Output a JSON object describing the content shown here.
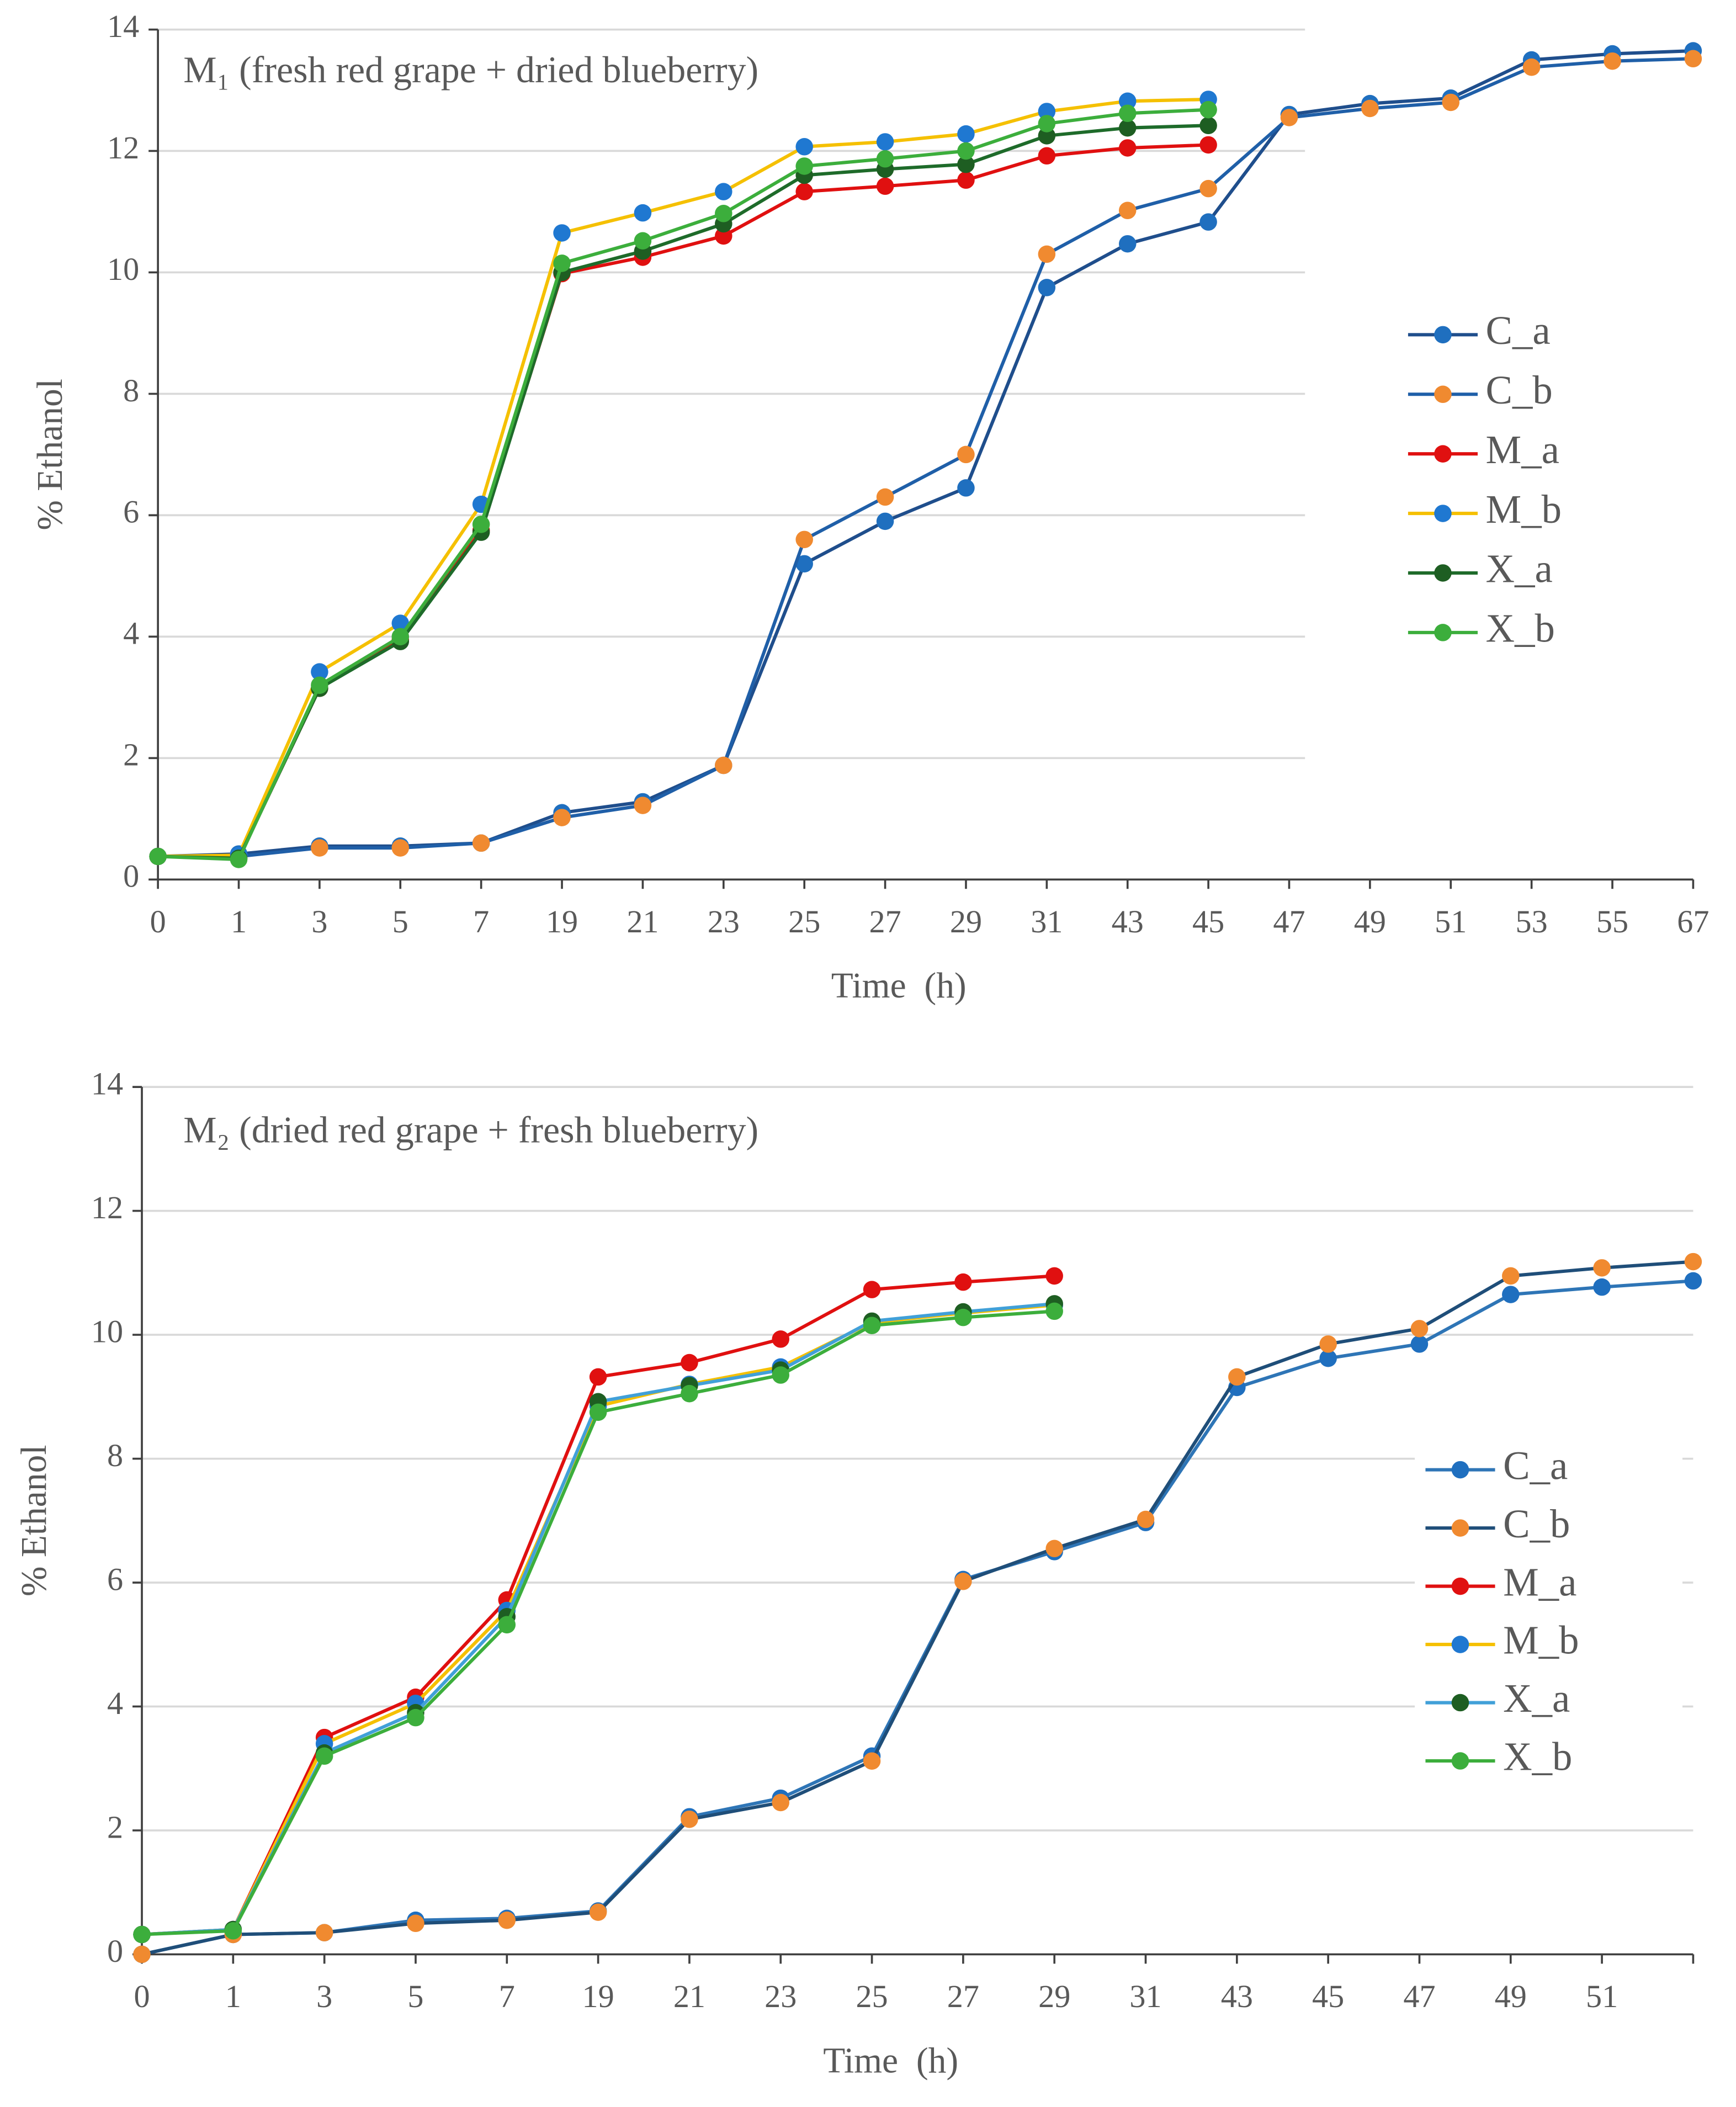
{
  "chart_data": [
    {
      "type": "line",
      "title": "M₁ (fresh red grape + dried blueberry)",
      "x_label": "Time  (h)",
      "y_label": "% Ethanol",
      "categories": [
        "0",
        "1",
        "3",
        "5",
        "7",
        "19",
        "21",
        "23",
        "25",
        "27",
        "29",
        "31",
        "43",
        "45",
        "47",
        "49",
        "51",
        "53",
        "55",
        "67"
      ],
      "ylim": [
        0,
        14
      ],
      "yticks": [
        0,
        2,
        4,
        6,
        8,
        10,
        12,
        14
      ],
      "grid": true,
      "legend": "right",
      "series": [
        {
          "name": "C_a",
          "color": "#1f4e8c",
          "marker": "#1f6fbf",
          "values": [
            0.38,
            0.42,
            0.55,
            0.55,
            0.6,
            1.1,
            1.28,
            1.88,
            5.2,
            5.9,
            6.45,
            9.75,
            10.47,
            10.83,
            12.6,
            12.78,
            12.87,
            13.5,
            13.6,
            13.65
          ]
        },
        {
          "name": "C_b",
          "color": "#1f5fa8",
          "marker": "#f08a30",
          "values": [
            0.38,
            0.38,
            0.52,
            0.52,
            0.6,
            1.02,
            1.22,
            1.88,
            5.6,
            6.3,
            7.0,
            10.3,
            11.02,
            11.38,
            12.55,
            12.7,
            12.8,
            13.38,
            13.48,
            13.52
          ]
        },
        {
          "name": "M_a",
          "color": "#e01010",
          "marker": "#e01010",
          "values": [
            0.38,
            0.35,
            3.15,
            3.95,
            5.75,
            9.98,
            10.25,
            10.6,
            11.33,
            11.42,
            11.52,
            11.92,
            12.05,
            12.1,
            null,
            null,
            null,
            null,
            null,
            null
          ]
        },
        {
          "name": "M_b",
          "color": "#f5c000",
          "marker": "#1f78d1",
          "values": [
            0.38,
            0.4,
            3.42,
            4.22,
            6.18,
            10.65,
            10.98,
            11.33,
            12.07,
            12.15,
            12.28,
            12.65,
            12.82,
            12.85,
            null,
            null,
            null,
            null,
            null,
            null
          ]
        },
        {
          "name": "X_a",
          "color": "#1e6b2a",
          "marker": "#1e5e22",
          "values": [
            0.38,
            0.35,
            3.15,
            3.92,
            5.72,
            10.0,
            10.35,
            10.8,
            11.6,
            11.7,
            11.78,
            12.25,
            12.38,
            12.42,
            null,
            null,
            null,
            null,
            null,
            null
          ]
        },
        {
          "name": "X_b",
          "color": "#3cae3c",
          "marker": "#3cae3c",
          "values": [
            0.38,
            0.33,
            3.2,
            4.0,
            5.85,
            10.15,
            10.52,
            10.97,
            11.75,
            11.87,
            12.0,
            12.45,
            12.62,
            12.68,
            null,
            null,
            null,
            null,
            null,
            null
          ]
        }
      ]
    },
    {
      "type": "line",
      "title": "M₂ (dried red grape + fresh blueberry)",
      "x_label": "Time  (h)",
      "y_label": "% Ethanol",
      "categories": [
        "0",
        "1",
        "3",
        "5",
        "7",
        "19",
        "21",
        "23",
        "25",
        "27",
        "29",
        "31",
        "43",
        "45",
        "47",
        "49",
        "51",
        null
      ],
      "ylim": [
        0,
        14
      ],
      "yticks": [
        0,
        2,
        4,
        6,
        8,
        10,
        12,
        14
      ],
      "grid": true,
      "legend": "right",
      "series": [
        {
          "name": "C_a",
          "color": "#2e75b6",
          "marker": "#1f6fbf",
          "values": [
            0,
            0.32,
            0.35,
            0.55,
            0.58,
            0.7,
            2.22,
            2.52,
            3.2,
            6.05,
            6.5,
            6.97,
            9.15,
            9.62,
            9.85,
            10.65,
            10.77,
            10.87
          ]
        },
        {
          "name": "C_b",
          "color": "#1f4e79",
          "marker": "#f08a30",
          "values": [
            0,
            0.32,
            0.35,
            0.5,
            0.55,
            0.68,
            2.18,
            2.45,
            3.12,
            6.02,
            6.55,
            7.02,
            9.32,
            9.85,
            10.1,
            10.95,
            11.08,
            11.18
          ]
        },
        {
          "name": "M_a",
          "color": "#e01010",
          "marker": "#e01010",
          "values": [
            0.32,
            0.4,
            3.5,
            4.15,
            5.72,
            9.32,
            9.55,
            9.93,
            10.73,
            10.85,
            10.95,
            null,
            null,
            null,
            null,
            null,
            null,
            null
          ]
        },
        {
          "name": "M_b",
          "color": "#f5c000",
          "marker": "#1f78d1",
          "values": [
            0.32,
            0.4,
            3.4,
            4.05,
            5.55,
            8.85,
            9.2,
            9.48,
            10.2,
            10.35,
            10.48,
            null,
            null,
            null,
            null,
            null,
            null,
            null
          ]
        },
        {
          "name": "X_a",
          "color": "#41a0d8",
          "marker": "#1e5e22",
          "values": [
            0.32,
            0.4,
            3.25,
            3.9,
            5.45,
            8.92,
            9.18,
            9.43,
            10.22,
            10.37,
            10.5,
            null,
            null,
            null,
            null,
            null,
            null,
            null
          ]
        },
        {
          "name": "X_b",
          "color": "#3cae3c",
          "marker": "#3cae3c",
          "values": [
            0.32,
            0.38,
            3.2,
            3.82,
            5.32,
            8.75,
            9.05,
            9.35,
            10.15,
            10.28,
            10.38,
            null,
            null,
            null,
            null,
            null,
            null,
            null
          ]
        }
      ]
    }
  ]
}
